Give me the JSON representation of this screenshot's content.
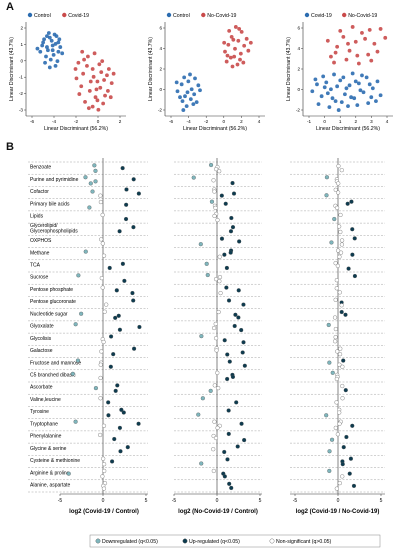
{
  "panel_a": {
    "letter": "A",
    "xlabel": "Linear Discriminant (56.2%)",
    "ylabel": "Linear Discriminant (43.7%)",
    "plots": [
      {
        "legend": [
          {
            "name": "Control",
            "color": "#2b6cb0"
          },
          {
            "name": "Covid-19",
            "color": "#c94a4a"
          }
        ],
        "xticks": [
          "-6",
          "-4",
          "-2",
          "0",
          "2"
        ],
        "yticks": [
          "2",
          "1",
          "0",
          "-1",
          "-2",
          "-3"
        ]
      },
      {
        "legend": [
          {
            "name": "Control",
            "color": "#2b6cb0"
          },
          {
            "name": "No-Covid-19",
            "color": "#c94a4a"
          }
        ],
        "xticks": [
          "-6",
          "-4",
          "-2",
          "0",
          "2",
          "4"
        ],
        "yticks": [
          "6",
          "4",
          "2",
          "0",
          "-2"
        ]
      },
      {
        "legend": [
          {
            "name": "Covid-19",
            "color": "#2b6cb0"
          },
          {
            "name": "No-Covid-19",
            "color": "#c94a4a"
          }
        ],
        "xticks": [
          "-1",
          "0",
          "1",
          "2",
          "3",
          "4"
        ],
        "yticks": [
          "6",
          "4",
          "2",
          "0",
          "-2"
        ]
      }
    ]
  },
  "panel_b": {
    "letter": "B",
    "pathways": [
      "Benzoate",
      "Purine and pyrimidine",
      "Cofactor",
      "Primary bile acids",
      "Lipids",
      "Glycerolipid/\nGlycerophospholipids",
      "OXPHOS",
      "Methane",
      "TCA",
      "Sucrose",
      "Pentose phosphate",
      "Pentose glucoronate",
      "Nucleotide sugar",
      "Glyoxalate",
      "Glycolisis",
      "Galactose",
      "Fructose and mannose",
      "C5 branched dibasic",
      "Ascorbate",
      "Valine,leucine",
      "Tyrosine",
      "Tryptophane",
      "Phenylalanine",
      "Glycine & serine",
      "Cysteine & methionine",
      "Arginine & proline",
      "Alanine, aspartate"
    ],
    "xlabels": [
      "log2 (Covid-19 / Control)",
      "log2 (No-Covid-19 / Control)",
      "log2 (Covid-19 / No-Covid-19)"
    ],
    "xticks": [
      "-5",
      "0",
      "5"
    ],
    "legend": [
      {
        "label": "Downregulated (q<0.05)",
        "color": "#7fb6bd"
      },
      {
        "label": "Up-regulated (q<0.05)",
        "color": "#0d3b4f"
      },
      {
        "label": "Non-significant (q>0.05)",
        "color": "#ffffff"
      }
    ]
  },
  "chart_data": [
    {
      "type": "scatter",
      "panel": "A1",
      "xlabel": "Linear Discriminant (56.2%)",
      "ylabel": "Linear Discriminant (43.7%)",
      "xlim": [
        -7,
        3.5
      ],
      "ylim": [
        -3.2,
        2.8
      ],
      "series": [
        {
          "name": "Control",
          "color": "#2b6cb0",
          "points": [
            [
              -5.2,
              1.5
            ],
            [
              -4.8,
              1.2
            ],
            [
              -4.5,
              1.8
            ],
            [
              -4.2,
              1.0
            ],
            [
              -3.9,
              1.4
            ],
            [
              -3.6,
              0.9
            ],
            [
              -4.9,
              0.6
            ],
            [
              -4.4,
              0.4
            ],
            [
              -5.5,
              0.9
            ],
            [
              -3.8,
              1.9
            ],
            [
              -4.6,
              2.1
            ],
            [
              -3.4,
              1.2
            ],
            [
              -5.0,
              0.2
            ],
            [
              -4.1,
              0.7
            ],
            [
              -3.7,
              0.3
            ],
            [
              -4.3,
              1.6
            ],
            [
              -5.3,
              1.3
            ],
            [
              -3.5,
              1.7
            ],
            [
              -4.7,
              1.0
            ],
            [
              -4.0,
              2.0
            ],
            [
              -5.8,
              1.1
            ],
            [
              -3.2,
              0.8
            ],
            [
              -4.5,
              -0.1
            ],
            [
              -3.9,
              0.0
            ],
            [
              -4.8,
              1.9
            ],
            [
              -5.1,
              1.7
            ],
            [
              -4.2,
              1.3
            ],
            [
              -3.6,
              1.5
            ]
          ]
        },
        {
          "name": "Covid-19",
          "color": "#c94a4a",
          "points": [
            [
              -1.5,
              0.2
            ],
            [
              -1.0,
              -0.5
            ],
            [
              -0.5,
              0.6
            ],
            [
              0.0,
              -0.2
            ],
            [
              0.5,
              -1.0
            ],
            [
              1.0,
              0.3
            ],
            [
              1.5,
              -0.6
            ],
            [
              -1.2,
              -1.3
            ],
            [
              -0.3,
              -1.6
            ],
            [
              0.3,
              -2.0
            ],
            [
              0.8,
              -1.4
            ],
            [
              1.3,
              -1.9
            ],
            [
              -0.8,
              -2.3
            ],
            [
              0.0,
              -2.6
            ],
            [
              0.6,
              -2.8
            ],
            [
              1.7,
              -0.2
            ],
            [
              2.0,
              -1.1
            ],
            [
              -1.7,
              -0.8
            ],
            [
              -0.6,
              0.0
            ],
            [
              0.2,
              0.8
            ],
            [
              0.9,
              -0.4
            ],
            [
              1.1,
              -2.4
            ],
            [
              -0.2,
              -1.0
            ],
            [
              0.4,
              -1.5
            ],
            [
              -1.4,
              -1.8
            ],
            [
              1.6,
              -1.6
            ],
            [
              0.7,
              0.1
            ],
            [
              -0.9,
              0.4
            ],
            [
              0.1,
              -0.7
            ],
            [
              1.9,
              -2.0
            ],
            [
              -1.1,
              0.9
            ],
            [
              0.5,
              -2.2
            ],
            [
              -0.4,
              -2.7
            ],
            [
              1.2,
              -0.9
            ],
            [
              2.2,
              -0.5
            ],
            [
              -1.8,
              -0.2
            ]
          ]
        }
      ]
    },
    {
      "type": "scatter",
      "panel": "A2",
      "xlabel": "Linear Discriminant (56.2%)",
      "ylabel": "Linear Discriminant (43.7%)",
      "xlim": [
        -7,
        5
      ],
      "ylim": [
        -3,
        6.5
      ],
      "series": [
        {
          "name": "Control",
          "color": "#2b6cb0",
          "points": [
            [
              -5.5,
              -0.5
            ],
            [
              -5.0,
              0.2
            ],
            [
              -4.6,
              -1.0
            ],
            [
              -4.2,
              0.5
            ],
            [
              -3.8,
              -0.3
            ],
            [
              -3.4,
              0.8
            ],
            [
              -4.9,
              -1.5
            ],
            [
              -4.4,
              -2.0
            ],
            [
              -3.9,
              -1.3
            ],
            [
              -3.5,
              -0.8
            ],
            [
              -3.0,
              0.1
            ],
            [
              -4.7,
              0.9
            ],
            [
              -5.2,
              -1.1
            ],
            [
              -4.0,
              1.2
            ],
            [
              -3.6,
              -1.8
            ],
            [
              -4.3,
              -0.6
            ],
            [
              -2.8,
              -0.4
            ],
            [
              -5.6,
              0.4
            ],
            [
              -4.8,
              -2.4
            ],
            [
              -3.2,
              -1.6
            ]
          ]
        },
        {
          "name": "No-Covid-19",
          "color": "#c94a4a",
          "points": [
            [
              0.2,
              3.5
            ],
            [
              0.6,
              4.2
            ],
            [
              1.0,
              5.0
            ],
            [
              1.4,
              3.8
            ],
            [
              1.8,
              4.6
            ],
            [
              2.2,
              5.5
            ],
            [
              0.4,
              2.5
            ],
            [
              0.9,
              2.9
            ],
            [
              1.3,
              3.0
            ],
            [
              1.7,
              2.2
            ],
            [
              2.1,
              3.3
            ],
            [
              2.5,
              4.1
            ],
            [
              0.7,
              5.6
            ],
            [
              1.5,
              6.0
            ],
            [
              2.8,
              4.8
            ],
            [
              0.1,
              4.4
            ],
            [
              1.1,
              2.0
            ],
            [
              2.0,
              2.7
            ],
            [
              3.0,
              3.6
            ],
            [
              1.9,
              5.8
            ],
            [
              0.5,
              3.1
            ],
            [
              2.4,
              2.4
            ],
            [
              3.3,
              4.4
            ],
            [
              1.2,
              4.7
            ]
          ]
        }
      ]
    },
    {
      "type": "scatter",
      "panel": "A3",
      "xlabel": "Linear Discriminant (56.2%)",
      "ylabel": "Linear Discriminant (43.7%)",
      "xlim": [
        -1.5,
        4.3
      ],
      "ylim": [
        -3,
        6.5
      ],
      "series": [
        {
          "name": "Covid-19",
          "color": "#2b6cb0",
          "points": [
            [
              -0.9,
              -0.5
            ],
            [
              -0.6,
              0.2
            ],
            [
              -0.3,
              -1.0
            ],
            [
              0.0,
              0.4
            ],
            [
              0.3,
              -0.3
            ],
            [
              0.6,
              -1.5
            ],
            [
              0.9,
              0.6
            ],
            [
              1.2,
              -0.8
            ],
            [
              1.5,
              0.1
            ],
            [
              1.8,
              -1.2
            ],
            [
              2.1,
              0.3
            ],
            [
              2.4,
              -0.6
            ],
            [
              2.7,
              -1.7
            ],
            [
              3.0,
              -0.2
            ],
            [
              3.3,
              0.5
            ],
            [
              -0.5,
              -1.8
            ],
            [
              0.2,
              -2.1
            ],
            [
              0.8,
              -2.4
            ],
            [
              1.4,
              -2.0
            ],
            [
              2.0,
              -1.9
            ],
            [
              2.6,
              0.9
            ],
            [
              -0.2,
              1.0
            ],
            [
              0.5,
              1.2
            ],
            [
              1.1,
              0.9
            ],
            [
              1.7,
              1.3
            ],
            [
              2.3,
              1.1
            ],
            [
              0.1,
              -0.7
            ],
            [
              0.7,
              0.0
            ],
            [
              1.3,
              -0.2
            ],
            [
              1.9,
              0.5
            ],
            [
              2.9,
              -1.1
            ],
            [
              3.5,
              -0.9
            ],
            [
              -0.7,
              0.7
            ],
            [
              0.4,
              -1.2
            ],
            [
              1.0,
              -1.6
            ],
            [
              1.6,
              -1.1
            ],
            [
              2.2,
              -0.4
            ],
            [
              2.8,
              0.2
            ],
            [
              3.2,
              -1.5
            ],
            [
              -0.1,
              -0.1
            ]
          ]
        },
        {
          "name": "No-Covid-19",
          "color": "#c94a4a",
          "points": [
            [
              0.3,
              3.0
            ],
            [
              0.7,
              4.0
            ],
            [
              1.1,
              5.0
            ],
            [
              1.5,
              3.6
            ],
            [
              1.9,
              4.5
            ],
            [
              2.3,
              5.4
            ],
            [
              2.7,
              3.2
            ],
            [
              3.1,
              4.3
            ],
            [
              3.5,
              5.8
            ],
            [
              0.5,
              2.4
            ],
            [
              1.3,
              2.7
            ],
            [
              2.1,
              2.3
            ],
            [
              2.9,
              2.6
            ],
            [
              0.9,
              5.6
            ],
            [
              1.7,
              6.0
            ],
            [
              2.5,
              4.8
            ],
            [
              3.3,
              3.5
            ],
            [
              3.8,
              4.9
            ],
            [
              0.1,
              4.6
            ],
            [
              1.4,
              4.3
            ],
            [
              2.0,
              3.1
            ],
            [
              2.8,
              5.7
            ],
            [
              0.6,
              3.4
            ]
          ]
        }
      ]
    },
    {
      "type": "scatter",
      "panel": "B",
      "xticks": [
        "-5",
        "0",
        "5"
      ],
      "note_series": "one dot per metabolite, rows grouped by pathway; status: down / up / ns"
    }
  ]
}
